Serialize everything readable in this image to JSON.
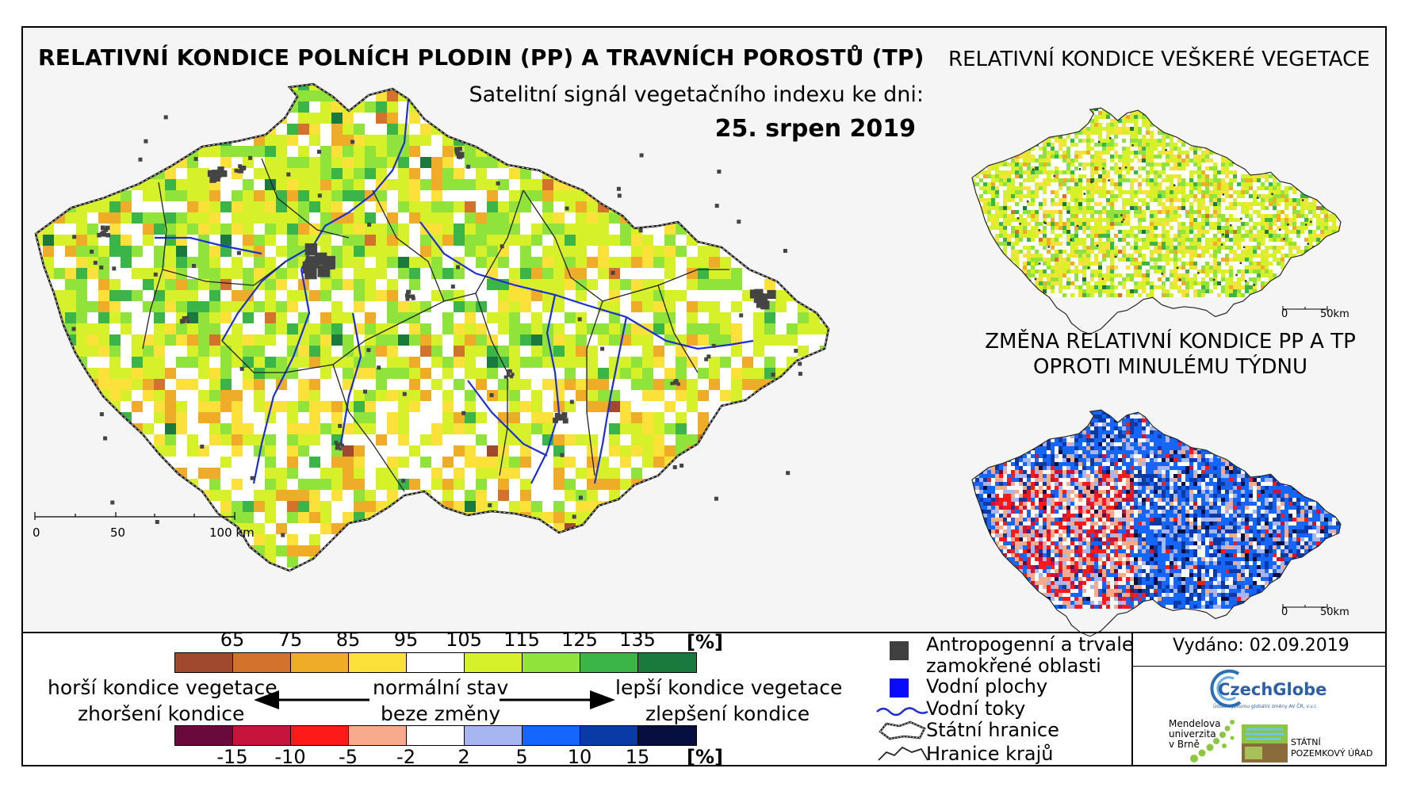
{
  "main": {
    "title": "RELATIVNÍ KONDICE POLNÍCH PLODIN (PP) A TRAVNÍCH POROSTŮ (TP)",
    "subtitle": "Satelitní signál vegetačního indexu ke dni:",
    "date": "25. srpen 2019",
    "scalebar": [
      "0",
      "50",
      "100 km"
    ]
  },
  "inset_vegetation": {
    "title": "RELATIVNÍ KONDICE VEŠKERÉ VEGETACE",
    "scalebar": [
      "0",
      "50km"
    ]
  },
  "inset_change": {
    "title_line1": "ZMĚNA RELATIVNÍ KONDICE PP A TP",
    "title_line2": "OPROTI MINULÉMU TÝDNU",
    "scalebar": [
      "0",
      "50km"
    ]
  },
  "legend_condition": {
    "ticks": [
      "65",
      "75",
      "85",
      "95",
      "105",
      "115",
      "125",
      "135"
    ],
    "unit": "[%]",
    "colors": [
      "#a0492e",
      "#d2722c",
      "#efac29",
      "#fde13b",
      "#ffffff",
      "#d6f12a",
      "#8fe33b",
      "#3cb548",
      "#1a7a3e"
    ]
  },
  "legend_change": {
    "ticks": [
      "-15",
      "-10",
      "-5",
      "-2",
      "2",
      "5",
      "10",
      "15"
    ],
    "unit": "[%]",
    "colors": [
      "#6a0a3c",
      "#c7143c",
      "#ff1a1a",
      "#f8ab8c",
      "#ffffff",
      "#a7b6ef",
      "#1566ff",
      "#0a3aa6",
      "#060f40"
    ]
  },
  "legend_text": {
    "worse_1": "horší kondice vegetace",
    "worse_2": "zhoršení kondice",
    "normal_1": "normální stav",
    "normal_2": "beze změny",
    "better_1": "lepší kondice vegetace",
    "better_2": "zlepšení kondice"
  },
  "legend_symbols": {
    "urban": "Antropogenní a trvale zamokřené oblasti",
    "urban_line1": "Antropogenní a trvale",
    "urban_line2": "zamokřené oblasti",
    "water": "Vodní plochy",
    "rivers": "Vodní toky",
    "border": "Státní hranice",
    "regions": "Hranice krajů"
  },
  "issued": "Vydáno: 02.09.2019",
  "logos": {
    "czechglobe": "CzechGlobe",
    "czechglobe_sub": "Ústav výzkumu globální změny AV ČR, v.v.i.",
    "mendel_1": "Mendelova",
    "mendel_2": "univerzita",
    "mendel_3": "v Brně",
    "spu_1": "STÁTNÍ",
    "spu_2": "POZEMKOVÝ ÚŘAD"
  }
}
